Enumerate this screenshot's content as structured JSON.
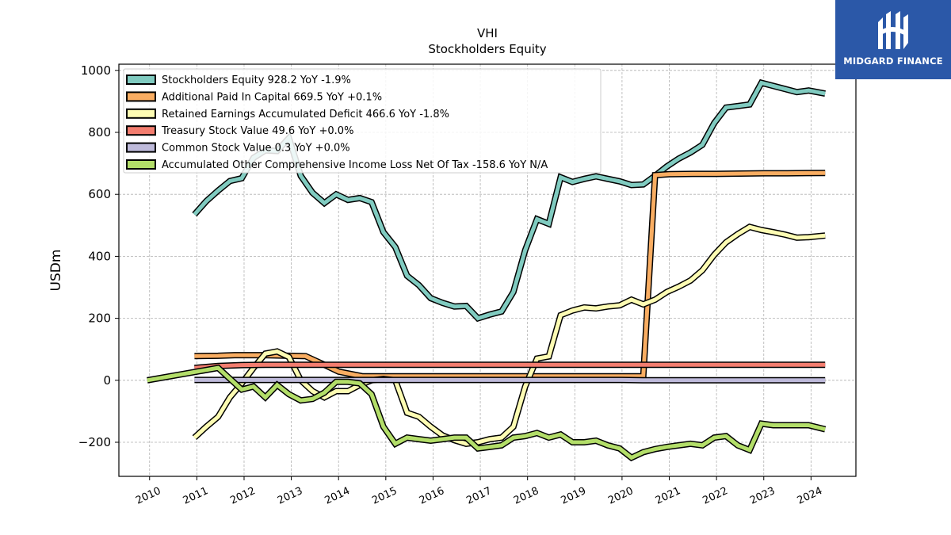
{
  "header": {
    "title": "VHI",
    "subtitle": "Stockholders  Equity"
  },
  "logo": {
    "text": "MIDGARD FINANCE",
    "background": "#2b58a8"
  },
  "chart_data": {
    "type": "line",
    "ylabel": "USDm",
    "ylim": [
      -310,
      1020
    ],
    "xlim": [
      2009.35,
      2024.95
    ],
    "yticks": [
      -200,
      0,
      200,
      400,
      600,
      800,
      1000
    ],
    "ytick_labels": [
      "−200",
      "0",
      "200",
      "400",
      "600",
      "800",
      "1000"
    ],
    "xticks": [
      2010,
      2011,
      2012,
      2013,
      2014,
      2015,
      2016,
      2017,
      2018,
      2019,
      2020,
      2021,
      2022,
      2023,
      2024
    ],
    "xtick_labels": [
      "2010",
      "2011",
      "2012",
      "2013",
      "2014",
      "2015",
      "2016",
      "2017",
      "2018",
      "2019",
      "2020",
      "2021",
      "2022",
      "2023",
      "2024"
    ],
    "grid": true,
    "legend_position": "top-left",
    "series": [
      {
        "name": "Stockholders Equity",
        "legend": "Stockholders Equity  928.2 YoY -1.9%",
        "color": "#80cbc0",
        "x": [
          2010.95,
          2011.2,
          2011.45,
          2011.7,
          2011.95,
          2012.2,
          2012.45,
          2012.7,
          2012.95,
          2013.2,
          2013.45,
          2013.7,
          2013.95,
          2014.2,
          2014.45,
          2014.7,
          2014.95,
          2015.2,
          2015.45,
          2015.7,
          2015.95,
          2016.2,
          2016.45,
          2016.7,
          2016.95,
          2017.2,
          2017.45,
          2017.7,
          2017.95,
          2018.2,
          2018.45,
          2018.7,
          2018.95,
          2019.2,
          2019.45,
          2019.7,
          2019.95,
          2020.2,
          2020.45,
          2020.7,
          2020.95,
          2021.2,
          2021.45,
          2021.7,
          2021.95,
          2022.2,
          2022.45,
          2022.7,
          2022.95,
          2023.2,
          2023.45,
          2023.7,
          2023.95,
          2024.3
        ],
        "values": [
          535,
          578,
          612,
          643,
          652,
          718,
          742,
          740,
          782,
          660,
          605,
          572,
          600,
          582,
          588,
          575,
          478,
          430,
          337,
          307,
          265,
          250,
          238,
          240,
          200,
          212,
          222,
          285,
          420,
          520,
          505,
          655,
          640,
          650,
          658,
          650,
          642,
          630,
          632,
          660,
          690,
          715,
          735,
          760,
          830,
          880,
          885,
          890,
          960,
          950,
          940,
          930,
          935,
          925
        ]
      },
      {
        "name": "Additional Paid In Capital",
        "legend": "Additional Paid In Capital  669.5 YoY +0.1%",
        "color": "#f9ad62",
        "x": [
          2010.95,
          2011.45,
          2011.8,
          2012.45,
          2012.95,
          2013.3,
          2013.7,
          2014.0,
          2014.5,
          2020.45,
          2020.7,
          2021.0,
          2021.5,
          2022.0,
          2022.5,
          2023.0,
          2023.5,
          2024.3
        ],
        "values": [
          78,
          79,
          81,
          81,
          79,
          78,
          50,
          28,
          13,
          13,
          662,
          665,
          666,
          666,
          667,
          668,
          668,
          669
        ]
      },
      {
        "name": "Retained Earnings Accumulated Deficit",
        "legend": "Retained Earnings Accumulated Deficit  466.6 YoY -1.8%",
        "color": "#fdfcb3",
        "x": [
          2010.95,
          2011.2,
          2011.45,
          2011.7,
          2011.95,
          2012.2,
          2012.45,
          2012.7,
          2012.95,
          2013.2,
          2013.45,
          2013.7,
          2013.95,
          2014.2,
          2014.45,
          2014.7,
          2014.95,
          2015.2,
          2015.45,
          2015.7,
          2015.95,
          2016.2,
          2016.45,
          2016.7,
          2016.95,
          2017.2,
          2017.45,
          2017.7,
          2017.95,
          2018.2,
          2018.45,
          2018.7,
          2018.95,
          2019.2,
          2019.45,
          2019.7,
          2019.95,
          2020.2,
          2020.45,
          2020.7,
          2020.95,
          2021.2,
          2021.45,
          2021.7,
          2021.95,
          2022.2,
          2022.45,
          2022.7,
          2022.95,
          2023.2,
          2023.45,
          2023.7,
          2023.95,
          2024.3
        ],
        "values": [
          -185,
          -150,
          -118,
          -55,
          -10,
          40,
          86,
          93,
          75,
          0,
          -35,
          -55,
          -35,
          -35,
          -15,
          0,
          4,
          0,
          -105,
          -118,
          -150,
          -178,
          -193,
          -205,
          -200,
          -190,
          -185,
          -150,
          -20,
          70,
          77,
          210,
          225,
          235,
          232,
          238,
          242,
          260,
          245,
          260,
          285,
          302,
          322,
          355,
          405,
          445,
          472,
          495,
          485,
          478,
          470,
          460,
          462,
          467
        ]
      },
      {
        "name": "Treasury Stock Value",
        "legend": "Treasury Stock Value  49.6 YoY +0.0%",
        "color": "#f37d6f",
        "x": [
          2010.95,
          2011.45,
          2011.95,
          2012.45,
          2013.0,
          2013.5,
          2014.0,
          2015.0,
          2017.0,
          2020.0,
          2022.0,
          2024.3
        ],
        "values": [
          40,
          46,
          49,
          50,
          50,
          50,
          50,
          50,
          50,
          50,
          50,
          50
        ]
      },
      {
        "name": "Common Stock Value",
        "legend": "Common Stock Value  0.3 YoY +0.0%",
        "color": "#bebada",
        "x": [
          2010.95,
          2012.0,
          2013.0,
          2014.0,
          2015.0,
          2016.0,
          2017.0,
          2018.0,
          2019.0,
          2020.0,
          2020.45,
          2021.0,
          2022.0,
          2023.0,
          2024.3
        ],
        "values": [
          1,
          1,
          1,
          1,
          1,
          1,
          1,
          1,
          1,
          1,
          0.3,
          0.3,
          0.3,
          0.3,
          0.3
        ]
      },
      {
        "name": "Accumulated Other Comprehensive Income Loss Net Of Tax",
        "legend": "Accumulated Other Comprehensive Income Loss Net Of Tax  -158.6 YoY N/A",
        "color": "#b3de69",
        "x": [
          2009.95,
          2011.45,
          2011.7,
          2011.95,
          2012.2,
          2012.45,
          2012.7,
          2012.95,
          2013.2,
          2013.45,
          2013.7,
          2013.95,
          2014.2,
          2014.45,
          2014.7,
          2014.95,
          2015.2,
          2015.45,
          2015.7,
          2015.95,
          2016.2,
          2016.45,
          2016.7,
          2016.95,
          2017.2,
          2017.45,
          2017.7,
          2017.95,
          2018.2,
          2018.45,
          2018.7,
          2018.95,
          2019.2,
          2019.45,
          2019.7,
          2019.95,
          2020.2,
          2020.45,
          2020.7,
          2020.95,
          2021.2,
          2021.45,
          2021.7,
          2021.95,
          2022.2,
          2022.45,
          2022.7,
          2022.95,
          2023.2,
          2023.45,
          2023.7,
          2023.95,
          2024.3
        ],
        "values": [
          0,
          40,
          5,
          -30,
          -20,
          -55,
          -15,
          -45,
          -65,
          -60,
          -40,
          -5,
          -5,
          -10,
          -45,
          -150,
          -205,
          -185,
          -190,
          -195,
          -190,
          -185,
          -185,
          -220,
          -215,
          -210,
          -185,
          -180,
          -170,
          -185,
          -175,
          -200,
          -200,
          -195,
          -210,
          -220,
          -250,
          -232,
          -222,
          -215,
          -210,
          -205,
          -210,
          -185,
          -180,
          -210,
          -225,
          -140,
          -145,
          -145,
          -145,
          -145,
          -158
        ]
      }
    ]
  }
}
